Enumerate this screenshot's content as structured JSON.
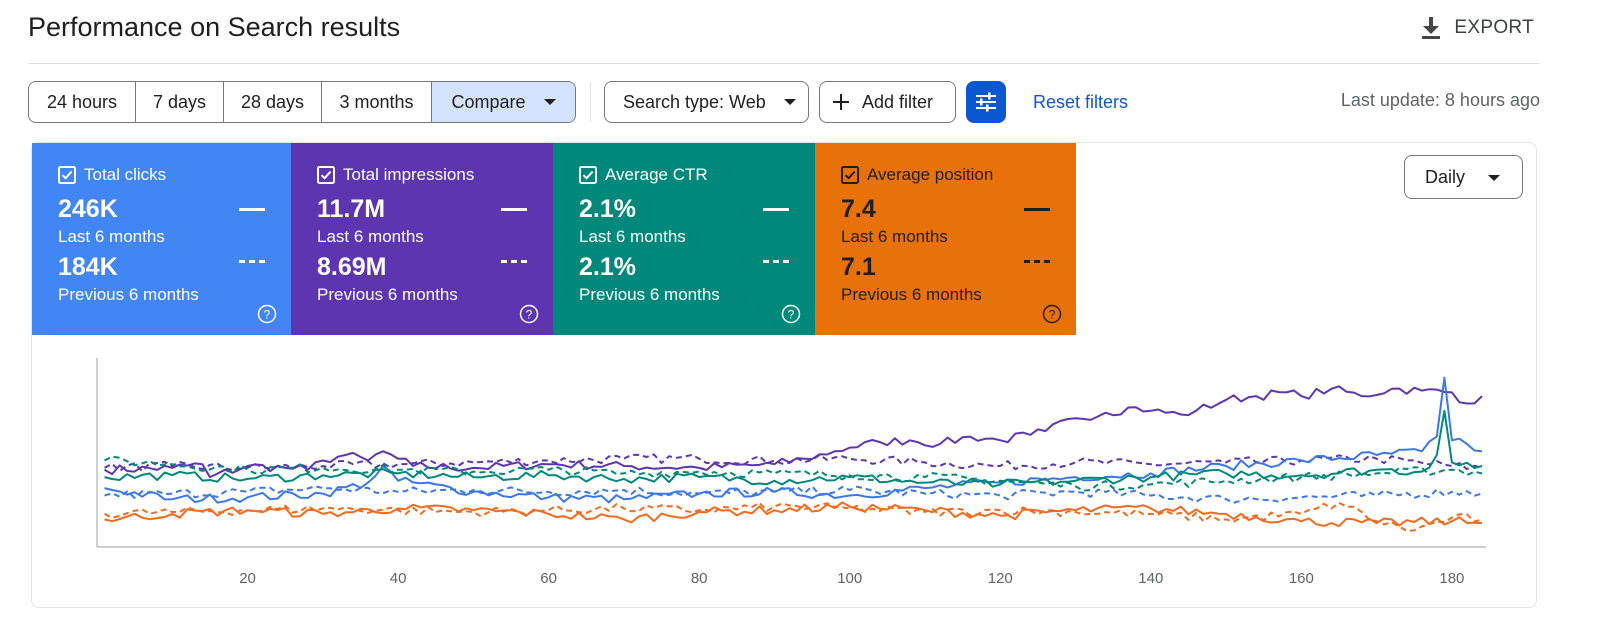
{
  "header": {
    "title": "Performance on Search results",
    "export_label": "EXPORT"
  },
  "toolbar": {
    "ranges": [
      "24 hours",
      "7 days",
      "28 days",
      "3 months",
      "Compare"
    ],
    "active_range": "Compare",
    "search_type": "Search type: Web",
    "add_filter": "Add filter",
    "reset_filters": "Reset filters",
    "last_update": "Last update: 8 hours ago"
  },
  "metrics": [
    {
      "name": "Total clicks",
      "checked": true,
      "current": "246K",
      "current_label": "Last 6 months",
      "previous": "184K",
      "previous_label": "Previous 6 months",
      "color": "#4285f4",
      "line_color": "#3b78e7"
    },
    {
      "name": "Total impressions",
      "checked": true,
      "current": "11.7M",
      "current_label": "Last 6 months",
      "previous": "8.69M",
      "previous_label": "Previous 6 months",
      "color": "#5e35b1",
      "line_color": "#5e35b1"
    },
    {
      "name": "Average CTR",
      "checked": true,
      "current": "2.1%",
      "current_label": "Last 6 months",
      "previous": "2.1%",
      "previous_label": "Previous 6 months",
      "color": "#00897b",
      "line_color": "#00897b"
    },
    {
      "name": "Average position",
      "checked": true,
      "current": "7.4",
      "current_label": "Last 6 months",
      "previous": "7.1",
      "previous_label": "Previous 6 months",
      "color": "#e8710a",
      "line_color": "#f26b1d"
    }
  ],
  "granularity": "Daily",
  "icons": {
    "export": "download-icon",
    "add": "plus-icon",
    "filter": "tune-icon",
    "checkbox": "checkbox-checked-icon",
    "help": "help-circle-icon",
    "dropdown": "caret-down-icon"
  },
  "chart_data": {
    "type": "line",
    "x_ticks": [
      20,
      40,
      60,
      80,
      100,
      120,
      140,
      160,
      180
    ],
    "xlim": [
      0,
      184
    ],
    "grid": false,
    "series_style": {
      "current": "solid",
      "previous": "dashed"
    },
    "series": [
      {
        "metric": "Total impressions",
        "period": "current",
        "color": "#5e35b1",
        "anchors": [
          [
            1,
            0.42
          ],
          [
            10,
            0.43
          ],
          [
            14,
            0.45
          ],
          [
            15,
            0.38
          ],
          [
            20,
            0.44
          ],
          [
            25,
            0.43
          ],
          [
            28,
            0.42
          ],
          [
            30,
            0.47
          ],
          [
            33,
            0.5
          ],
          [
            36,
            0.47
          ],
          [
            38,
            0.52
          ],
          [
            40,
            0.48
          ],
          [
            42,
            0.44
          ],
          [
            50,
            0.43
          ],
          [
            60,
            0.45
          ],
          [
            70,
            0.44
          ],
          [
            80,
            0.43
          ],
          [
            90,
            0.45
          ],
          [
            94,
            0.48
          ],
          [
            98,
            0.52
          ],
          [
            100,
            0.54
          ],
          [
            104,
            0.57
          ],
          [
            108,
            0.58
          ],
          [
            112,
            0.56
          ],
          [
            116,
            0.6
          ],
          [
            120,
            0.58
          ],
          [
            124,
            0.61
          ],
          [
            126,
            0.63
          ],
          [
            130,
            0.7
          ],
          [
            134,
            0.73
          ],
          [
            138,
            0.76
          ],
          [
            140,
            0.74
          ],
          [
            144,
            0.72
          ],
          [
            146,
            0.74
          ],
          [
            150,
            0.8
          ],
          [
            154,
            0.82
          ],
          [
            158,
            0.84
          ],
          [
            160,
            0.82
          ],
          [
            164,
            0.86
          ],
          [
            168,
            0.82
          ],
          [
            172,
            0.86
          ],
          [
            176,
            0.85
          ],
          [
            180,
            0.84
          ],
          [
            182,
            0.78
          ],
          [
            184,
            0.82
          ]
        ]
      },
      {
        "metric": "Total impressions",
        "period": "previous",
        "color": "#5e35b1",
        "anchors": [
          [
            1,
            0.43
          ],
          [
            10,
            0.44
          ],
          [
            20,
            0.43
          ],
          [
            30,
            0.44
          ],
          [
            40,
            0.45
          ],
          [
            50,
            0.46
          ],
          [
            60,
            0.47
          ],
          [
            70,
            0.48
          ],
          [
            80,
            0.48
          ],
          [
            90,
            0.47
          ],
          [
            100,
            0.48
          ],
          [
            110,
            0.46
          ],
          [
            120,
            0.44
          ],
          [
            130,
            0.46
          ],
          [
            140,
            0.45
          ],
          [
            150,
            0.46
          ],
          [
            160,
            0.47
          ],
          [
            170,
            0.48
          ],
          [
            180,
            0.44
          ],
          [
            184,
            0.43
          ]
        ]
      },
      {
        "metric": "Total clicks",
        "period": "current",
        "color": "#3b78e7",
        "anchors": [
          [
            1,
            0.32
          ],
          [
            10,
            0.26
          ],
          [
            20,
            0.27
          ],
          [
            30,
            0.29
          ],
          [
            36,
            0.35
          ],
          [
            38,
            0.44
          ],
          [
            40,
            0.36
          ],
          [
            50,
            0.3
          ],
          [
            60,
            0.27
          ],
          [
            70,
            0.26
          ],
          [
            80,
            0.29
          ],
          [
            90,
            0.3
          ],
          [
            100,
            0.28
          ],
          [
            110,
            0.32
          ],
          [
            120,
            0.35
          ],
          [
            130,
            0.38
          ],
          [
            140,
            0.4
          ],
          [
            150,
            0.44
          ],
          [
            160,
            0.47
          ],
          [
            170,
            0.5
          ],
          [
            176,
            0.52
          ],
          [
            178,
            0.6
          ],
          [
            179,
            0.92
          ],
          [
            180,
            0.58
          ],
          [
            184,
            0.52
          ]
        ]
      },
      {
        "metric": "Total clicks",
        "period": "previous",
        "color": "#3b78e7",
        "anchors": [
          [
            1,
            0.28
          ],
          [
            10,
            0.29
          ],
          [
            20,
            0.3
          ],
          [
            30,
            0.32
          ],
          [
            40,
            0.3
          ],
          [
            50,
            0.31
          ],
          [
            60,
            0.3
          ],
          [
            70,
            0.31
          ],
          [
            80,
            0.29
          ],
          [
            90,
            0.3
          ],
          [
            100,
            0.31
          ],
          [
            110,
            0.29
          ],
          [
            120,
            0.28
          ],
          [
            130,
            0.3
          ],
          [
            140,
            0.28
          ],
          [
            150,
            0.26
          ],
          [
            160,
            0.27
          ],
          [
            170,
            0.28
          ],
          [
            180,
            0.3
          ],
          [
            184,
            0.29
          ]
        ]
      },
      {
        "metric": "Average CTR",
        "period": "current",
        "color": "#00897b",
        "anchors": [
          [
            1,
            0.38
          ],
          [
            10,
            0.39
          ],
          [
            20,
            0.37
          ],
          [
            30,
            0.39
          ],
          [
            40,
            0.4
          ],
          [
            50,
            0.38
          ],
          [
            60,
            0.39
          ],
          [
            70,
            0.37
          ],
          [
            80,
            0.38
          ],
          [
            90,
            0.36
          ],
          [
            100,
            0.38
          ],
          [
            110,
            0.35
          ],
          [
            120,
            0.34
          ],
          [
            130,
            0.36
          ],
          [
            140,
            0.38
          ],
          [
            150,
            0.4
          ],
          [
            160,
            0.39
          ],
          [
            170,
            0.42
          ],
          [
            176,
            0.41
          ],
          [
            178,
            0.5
          ],
          [
            179,
            0.74
          ],
          [
            180,
            0.46
          ],
          [
            184,
            0.44
          ]
        ]
      },
      {
        "metric": "Average CTR",
        "period": "previous",
        "color": "#00897b",
        "anchors": [
          [
            1,
            0.47
          ],
          [
            10,
            0.45
          ],
          [
            20,
            0.42
          ],
          [
            30,
            0.43
          ],
          [
            40,
            0.42
          ],
          [
            50,
            0.41
          ],
          [
            60,
            0.42
          ],
          [
            70,
            0.4
          ],
          [
            80,
            0.41
          ],
          [
            90,
            0.4
          ],
          [
            100,
            0.39
          ],
          [
            110,
            0.38
          ],
          [
            120,
            0.36
          ],
          [
            130,
            0.33
          ],
          [
            140,
            0.34
          ],
          [
            150,
            0.36
          ],
          [
            160,
            0.38
          ],
          [
            170,
            0.4
          ],
          [
            180,
            0.42
          ],
          [
            184,
            0.4
          ]
        ]
      },
      {
        "metric": "Average position",
        "period": "current",
        "color": "#f26b1d",
        "anchors": [
          [
            1,
            0.15
          ],
          [
            10,
            0.18
          ],
          [
            20,
            0.2
          ],
          [
            30,
            0.18
          ],
          [
            40,
            0.21
          ],
          [
            50,
            0.2
          ],
          [
            60,
            0.18
          ],
          [
            70,
            0.15
          ],
          [
            80,
            0.19
          ],
          [
            90,
            0.2
          ],
          [
            100,
            0.22
          ],
          [
            110,
            0.2
          ],
          [
            120,
            0.17
          ],
          [
            130,
            0.2
          ],
          [
            140,
            0.21
          ],
          [
            150,
            0.18
          ],
          [
            160,
            0.14
          ],
          [
            170,
            0.13
          ],
          [
            180,
            0.14
          ],
          [
            184,
            0.13
          ]
        ]
      },
      {
        "metric": "Average position",
        "period": "previous",
        "color": "#f26b1d",
        "anchors": [
          [
            1,
            0.18
          ],
          [
            10,
            0.19
          ],
          [
            20,
            0.2
          ],
          [
            30,
            0.21
          ],
          [
            40,
            0.2
          ],
          [
            50,
            0.19
          ],
          [
            60,
            0.2
          ],
          [
            70,
            0.21
          ],
          [
            80,
            0.2
          ],
          [
            90,
            0.22
          ],
          [
            100,
            0.21
          ],
          [
            110,
            0.19
          ],
          [
            120,
            0.2
          ],
          [
            130,
            0.19
          ],
          [
            140,
            0.18
          ],
          [
            150,
            0.15
          ],
          [
            160,
            0.18
          ],
          [
            165,
            0.24
          ],
          [
            170,
            0.14
          ],
          [
            175,
            0.09
          ],
          [
            180,
            0.16
          ],
          [
            184,
            0.15
          ]
        ]
      }
    ]
  }
}
